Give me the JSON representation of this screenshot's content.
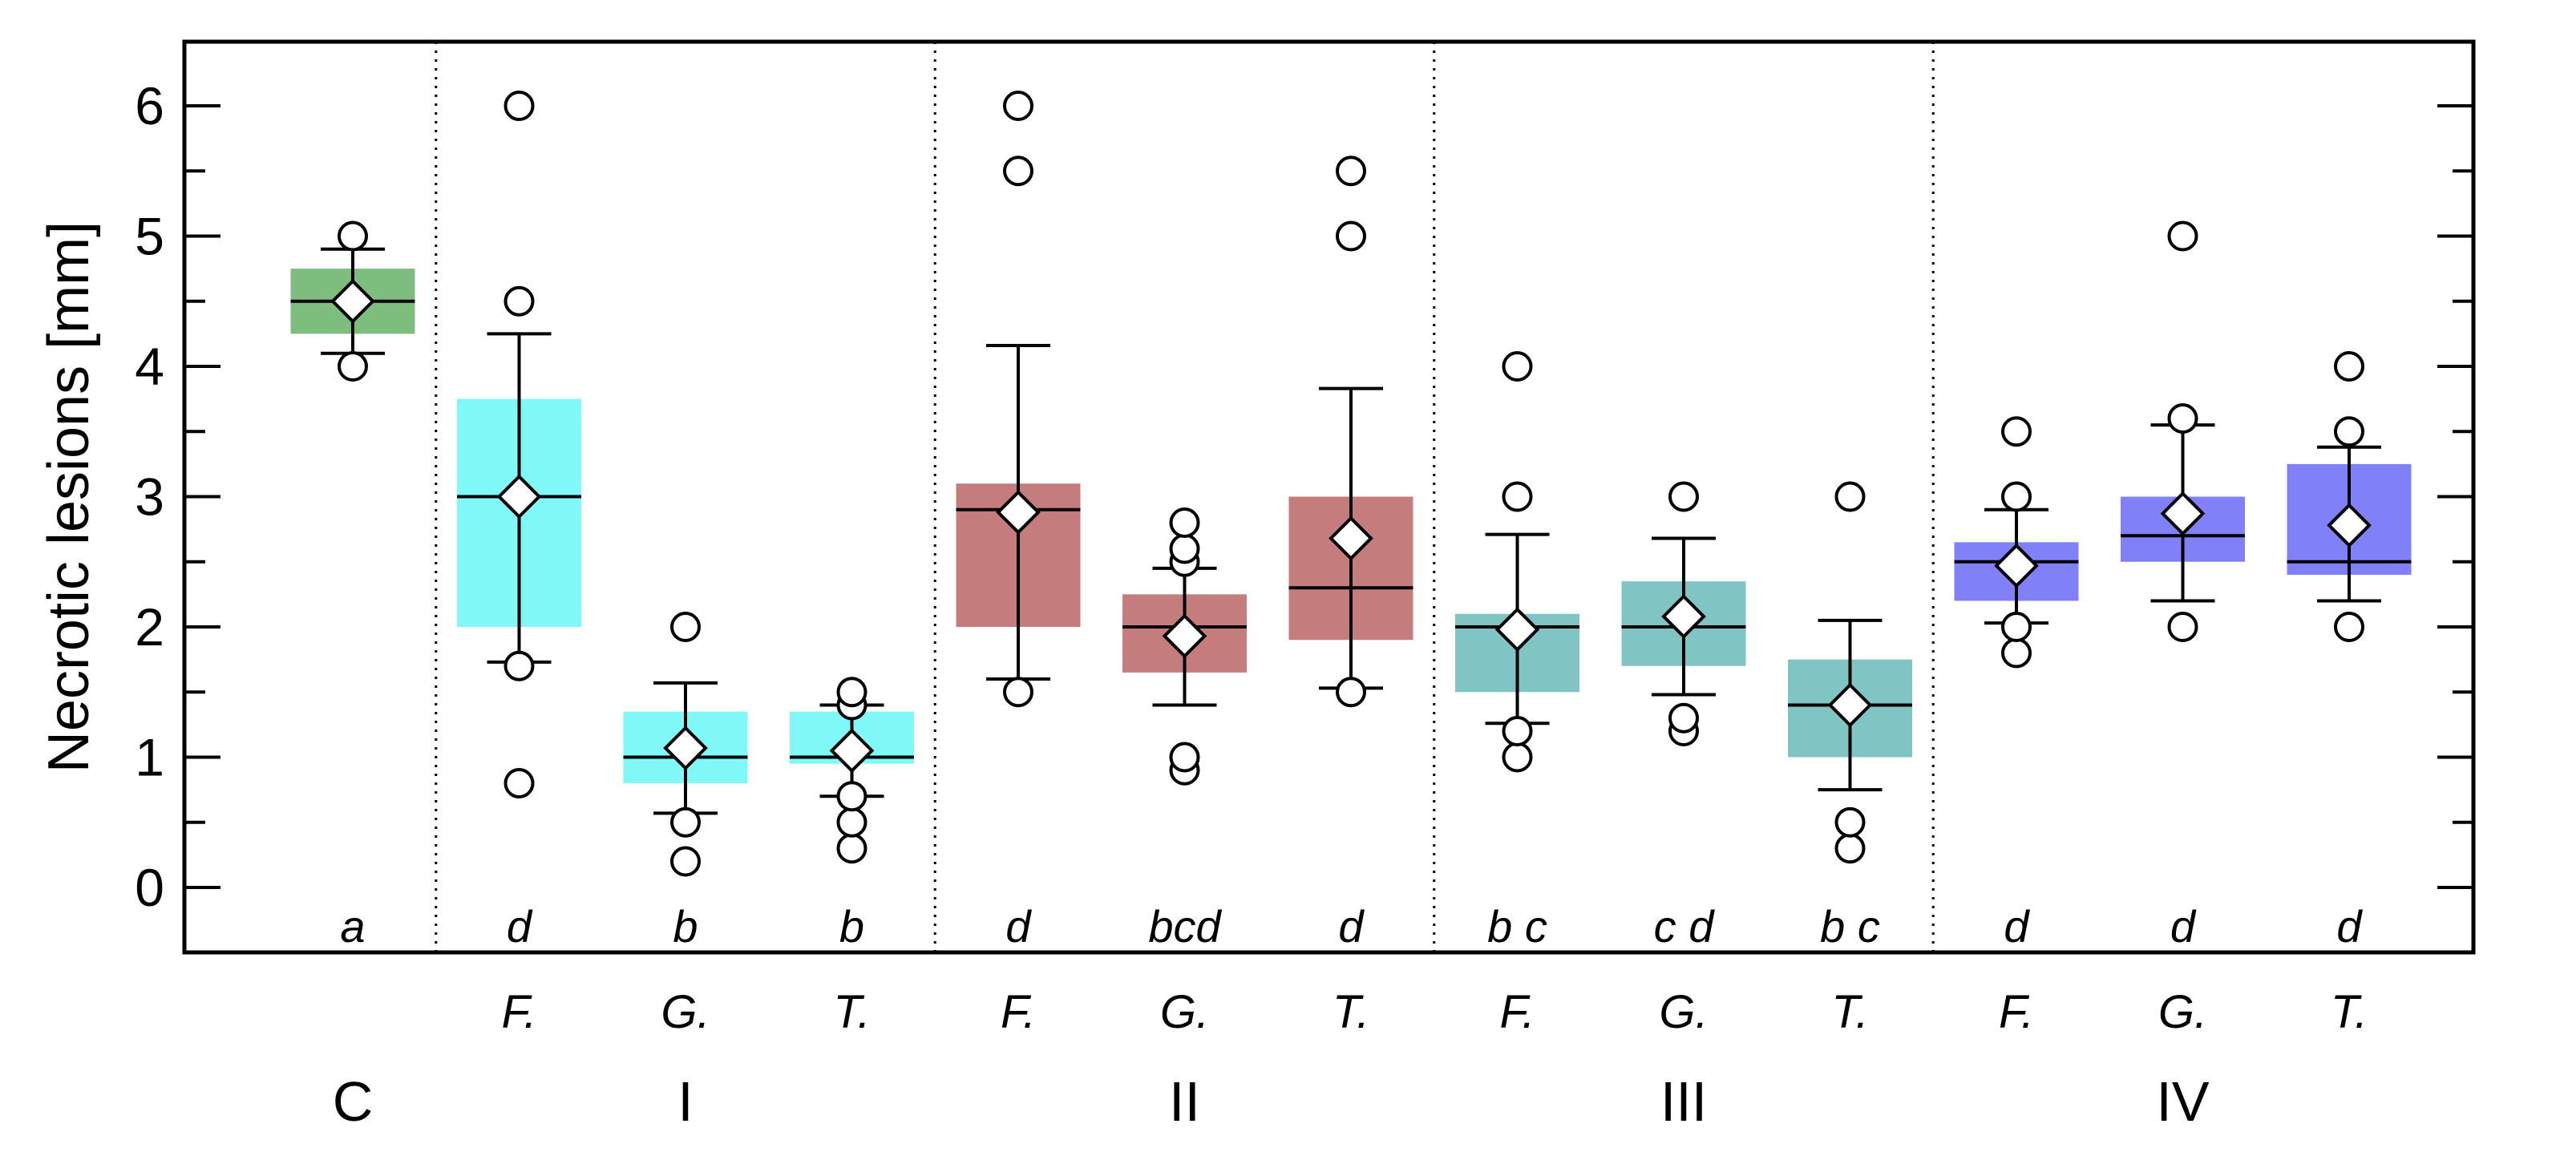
{
  "chart_data": {
    "type": "box",
    "title": "",
    "ylabel": "Necrotic lesions [mm]",
    "ylim": [
      -0.5,
      6.5
    ],
    "yticks": [
      0,
      1,
      2,
      3,
      4,
      5,
      6
    ],
    "grid": false,
    "colors": {
      "C": "#7dbd7d",
      "I": "#80f8f8",
      "II": "#c47c7c",
      "III": "#80c4c4",
      "IV": "#8080f8"
    },
    "groups": [
      {
        "label": "C",
        "boxes": [
          0
        ]
      },
      {
        "label": "I",
        "boxes": [
          1,
          2,
          3
        ]
      },
      {
        "label": "II",
        "boxes": [
          4,
          5,
          6
        ]
      },
      {
        "label": "III",
        "boxes": [
          7,
          8,
          9
        ]
      },
      {
        "label": "IV",
        "boxes": [
          10,
          11,
          12
        ]
      }
    ],
    "boxes": [
      {
        "group": "C",
        "species": "",
        "letter": "a",
        "q1": 4.25,
        "median": 4.5,
        "q3": 4.75,
        "mean": 4.5,
        "whisker_low": 4.1,
        "whisker_high": 4.9,
        "outliers": [
          4.0,
          5.0
        ]
      },
      {
        "group": "I",
        "species": "F.",
        "letter": "d",
        "q1": 2.0,
        "median": 3.0,
        "q3": 3.75,
        "mean": 3.0,
        "whisker_low": 1.73,
        "whisker_high": 4.25,
        "outliers": [
          0.8,
          1.7,
          4.5,
          6.0
        ]
      },
      {
        "group": "I",
        "species": "G.",
        "letter": "b",
        "q1": 0.8,
        "median": 1.0,
        "q3": 1.35,
        "mean": 1.07,
        "whisker_low": 0.57,
        "whisker_high": 1.57,
        "outliers": [
          0.2,
          0.5,
          2.0
        ]
      },
      {
        "group": "I",
        "species": "T.",
        "letter": "b",
        "q1": 0.95,
        "median": 1.0,
        "q3": 1.35,
        "mean": 1.05,
        "whisker_low": 0.7,
        "whisker_high": 1.4,
        "outliers": [
          0.3,
          0.5,
          0.7,
          1.4,
          1.5
        ]
      },
      {
        "group": "II",
        "species": "F.",
        "letter": "d",
        "q1": 2.0,
        "median": 2.9,
        "q3": 3.1,
        "mean": 2.88,
        "whisker_low": 1.6,
        "whisker_high": 4.16,
        "outliers": [
          1.5,
          5.5,
          6.0
        ]
      },
      {
        "group": "II",
        "species": "G.",
        "letter": "bcd",
        "q1": 1.65,
        "median": 2.0,
        "q3": 2.25,
        "mean": 1.93,
        "whisker_low": 1.4,
        "whisker_high": 2.45,
        "outliers": [
          0.9,
          1.0,
          2.5,
          2.6,
          2.8
        ]
      },
      {
        "group": "II",
        "species": "T.",
        "letter": "d",
        "q1": 1.9,
        "median": 2.3,
        "q3": 3.0,
        "mean": 2.68,
        "whisker_low": 1.53,
        "whisker_high": 3.83,
        "outliers": [
          1.5,
          5.0,
          5.5
        ]
      },
      {
        "group": "III",
        "species": "F.",
        "letter": "b c",
        "q1": 1.5,
        "median": 2.0,
        "q3": 2.1,
        "mean": 1.98,
        "whisker_low": 1.26,
        "whisker_high": 2.71,
        "outliers": [
          1.0,
          1.2,
          3.0,
          4.0
        ]
      },
      {
        "group": "III",
        "species": "G.",
        "letter": "c d",
        "q1": 1.7,
        "median": 2.0,
        "q3": 2.35,
        "mean": 2.08,
        "whisker_low": 1.48,
        "whisker_high": 2.68,
        "outliers": [
          1.2,
          1.3,
          3.0
        ]
      },
      {
        "group": "III",
        "species": "T.",
        "letter": "b c",
        "q1": 1.0,
        "median": 1.4,
        "q3": 1.75,
        "mean": 1.4,
        "whisker_low": 0.75,
        "whisker_high": 2.05,
        "outliers": [
          0.3,
          0.5,
          3.0
        ]
      },
      {
        "group": "IV",
        "species": "F.",
        "letter": "d",
        "q1": 2.2,
        "median": 2.5,
        "q3": 2.65,
        "mean": 2.47,
        "whisker_low": 2.03,
        "whisker_high": 2.9,
        "outliers": [
          1.8,
          2.0,
          3.0,
          3.5
        ]
      },
      {
        "group": "IV",
        "species": "G.",
        "letter": "d",
        "q1": 2.5,
        "median": 2.7,
        "q3": 3.0,
        "mean": 2.87,
        "whisker_low": 2.2,
        "whisker_high": 3.55,
        "outliers": [
          2.0,
          3.6,
          5.0
        ]
      },
      {
        "group": "IV",
        "species": "T.",
        "letter": "d",
        "q1": 2.4,
        "median": 2.5,
        "q3": 3.25,
        "mean": 2.78,
        "whisker_low": 2.2,
        "whisker_high": 3.38,
        "outliers": [
          2.0,
          3.5,
          4.0
        ]
      }
    ]
  }
}
